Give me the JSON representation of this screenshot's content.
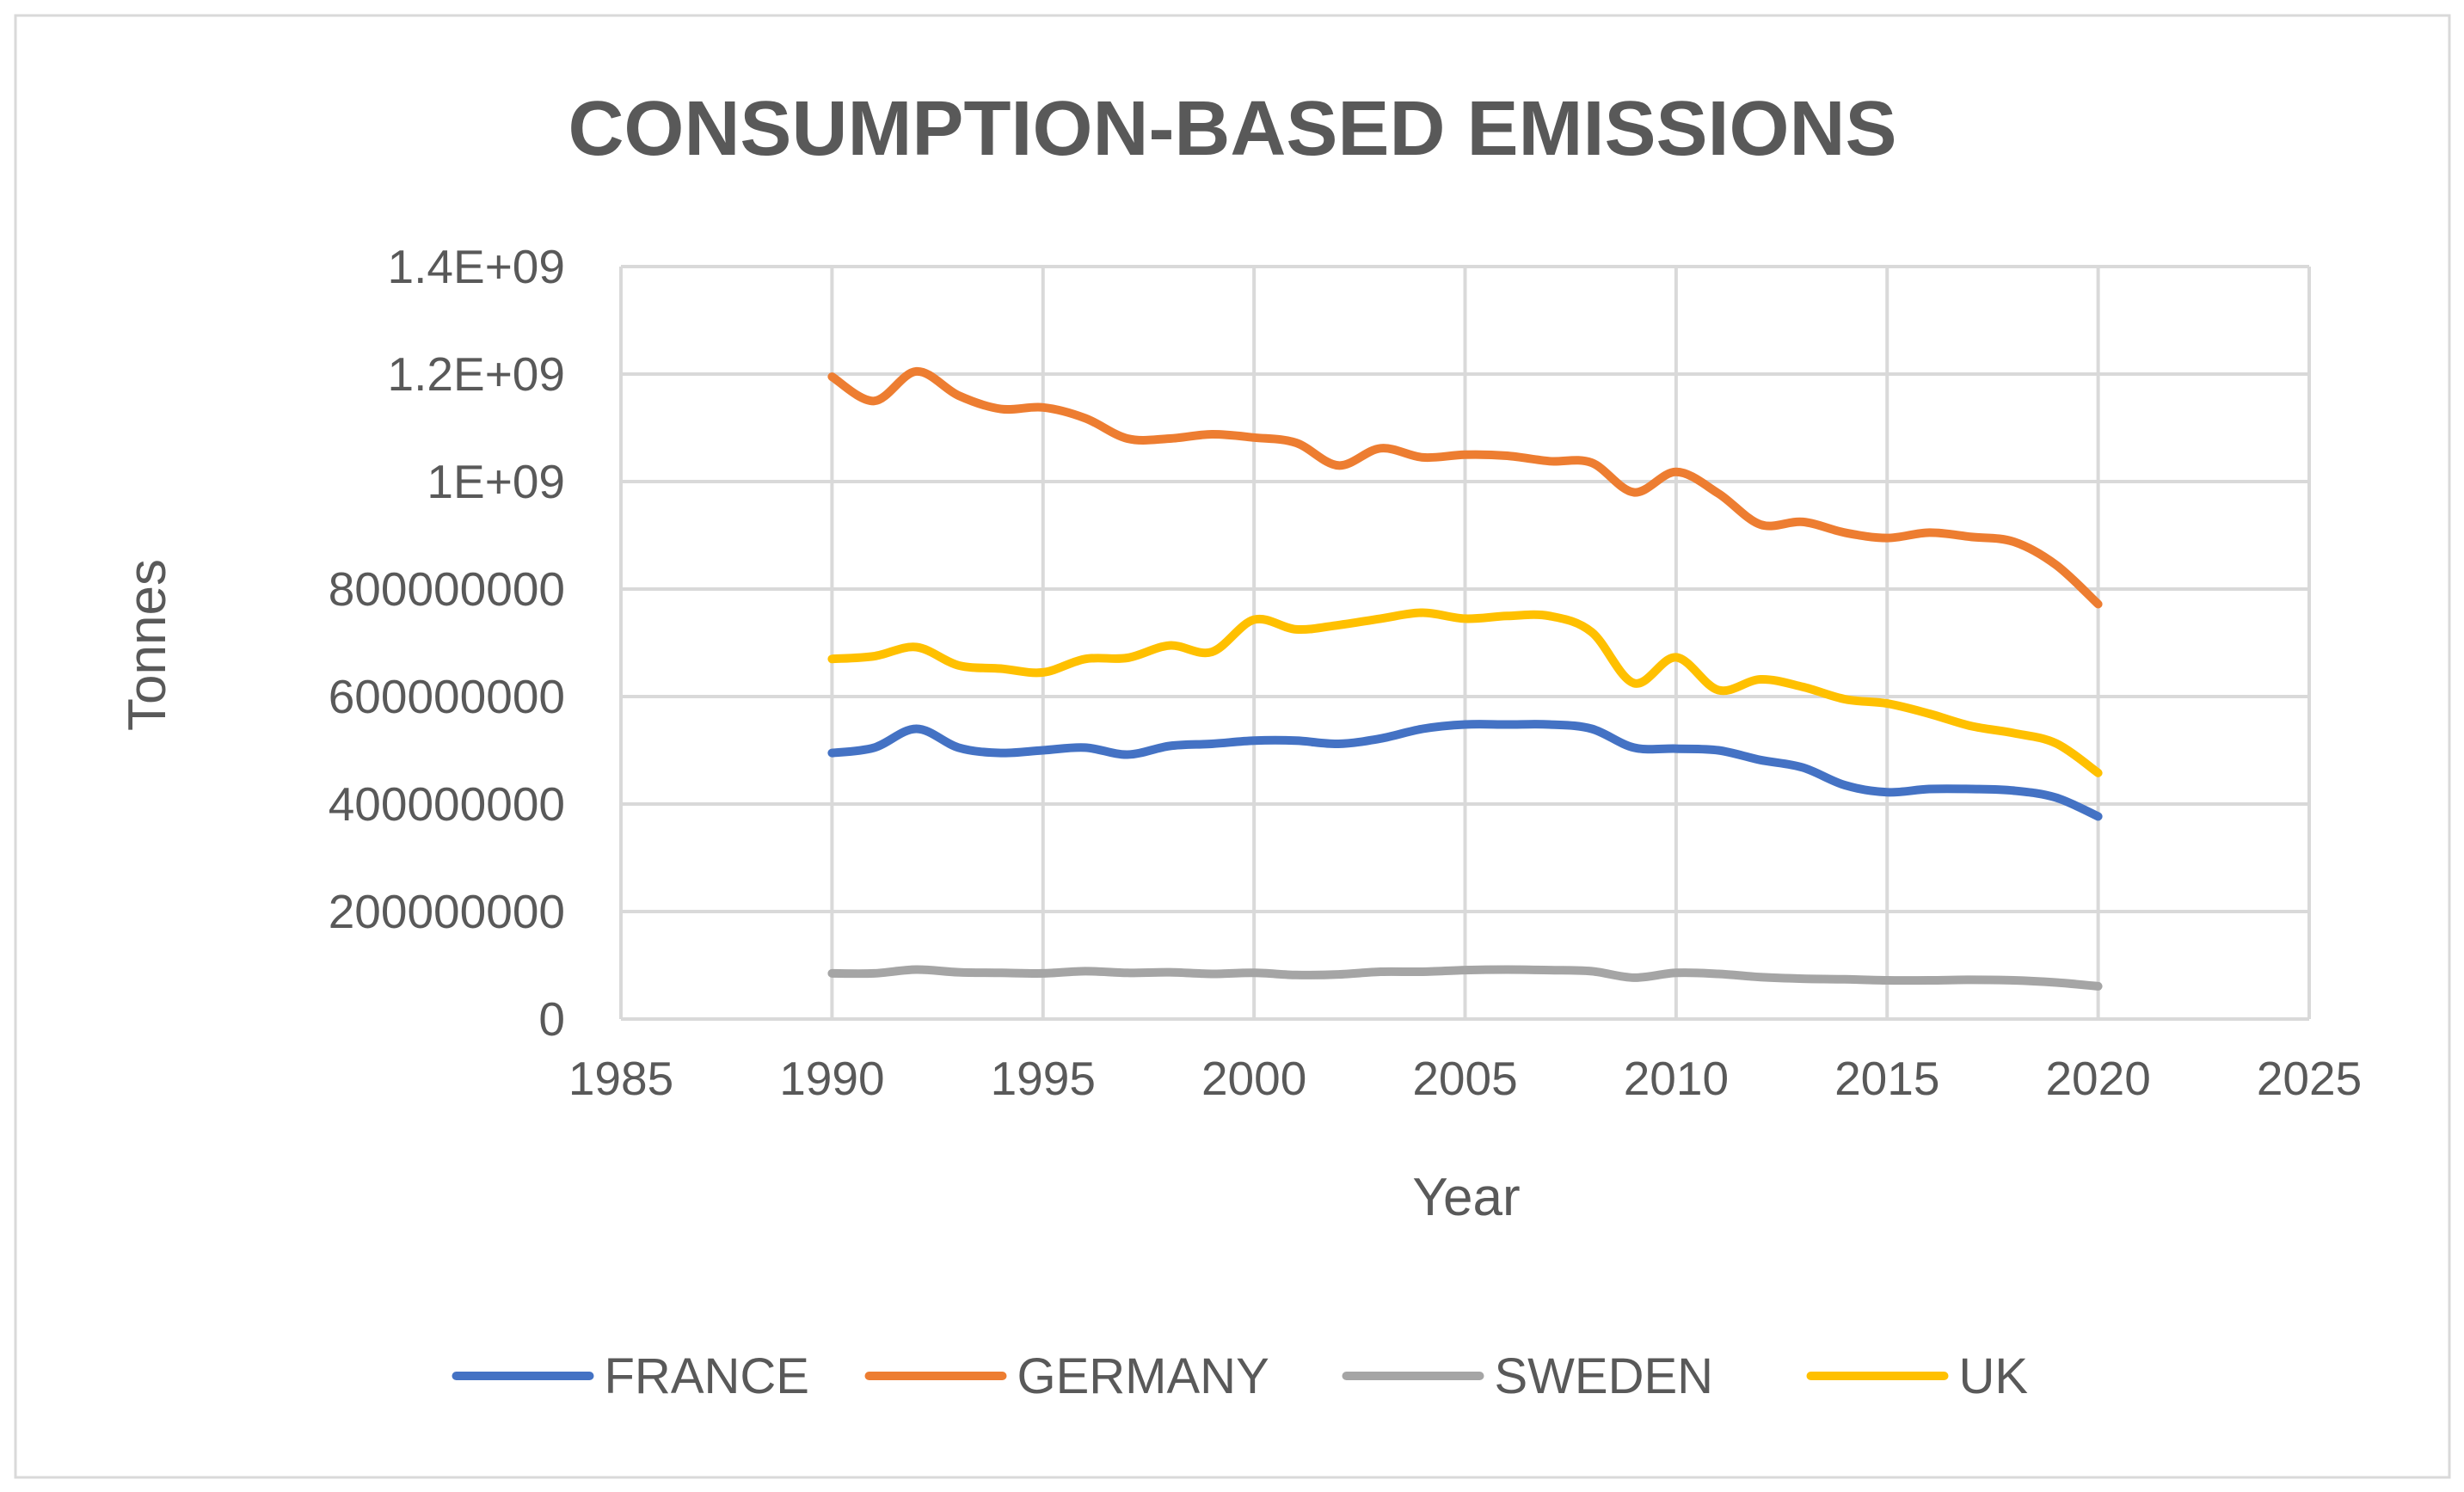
{
  "chart_data": {
    "type": "line",
    "title": "CONSUMPTION-BASED EMISSIONS",
    "xlabel": "Year",
    "ylabel": "Tonnes",
    "xlim": [
      1985,
      2025
    ],
    "ylim": [
      0,
      1400000000
    ],
    "x_ticks": [
      1985,
      1990,
      1995,
      2000,
      2005,
      2010,
      2015,
      2020,
      2025
    ],
    "x_tick_labels": [
      "1985",
      "1990",
      "1995",
      "2000",
      "2005",
      "2010",
      "2015",
      "2020",
      "2025"
    ],
    "y_ticks": [
      0,
      200000000,
      400000000,
      600000000,
      800000000,
      1000000000,
      1200000000,
      1400000000
    ],
    "y_tick_labels": [
      "0",
      "200000000",
      "400000000",
      "600000000",
      "800000000",
      "1E+09",
      "1.2E+09",
      "1.4E+09"
    ],
    "grid": true,
    "legend_position": "bottom",
    "x": [
      1990,
      1991,
      1992,
      1993,
      1994,
      1995,
      1996,
      1997,
      1998,
      1999,
      2000,
      2001,
      2002,
      2003,
      2004,
      2005,
      2006,
      2007,
      2008,
      2009,
      2010,
      2011,
      2012,
      2013,
      2014,
      2015,
      2016,
      2017,
      2018,
      2019,
      2020
    ],
    "series": [
      {
        "name": "FRANCE",
        "color": "#4472C4",
        "values": [
          495000000,
          505000000,
          540000000,
          505000000,
          495000000,
          500000000,
          505000000,
          492000000,
          508000000,
          512000000,
          518000000,
          518000000,
          512000000,
          522000000,
          540000000,
          548000000,
          548000000,
          548000000,
          540000000,
          505000000,
          503000000,
          500000000,
          482000000,
          468000000,
          435000000,
          422000000,
          428000000,
          428000000,
          425000000,
          412000000,
          377000000
        ]
      },
      {
        "name": "GERMANY",
        "color": "#ED7D31",
        "values": [
          1195000000,
          1150000000,
          1205000000,
          1160000000,
          1135000000,
          1138000000,
          1118000000,
          1080000000,
          1080000000,
          1088000000,
          1082000000,
          1072000000,
          1030000000,
          1062000000,
          1045000000,
          1050000000,
          1048000000,
          1038000000,
          1035000000,
          980000000,
          1018000000,
          978000000,
          920000000,
          925000000,
          905000000,
          895000000,
          905000000,
          897000000,
          888000000,
          845000000,
          772000000
        ]
      },
      {
        "name": "SWEDEN",
        "color": "#A5A5A5",
        "values": [
          85000000,
          85000000,
          92000000,
          87000000,
          86000000,
          85000000,
          89000000,
          86000000,
          87000000,
          84000000,
          86000000,
          82000000,
          83000000,
          88000000,
          88000000,
          91000000,
          92000000,
          91000000,
          89000000,
          77000000,
          86000000,
          84000000,
          78000000,
          75000000,
          74000000,
          72000000,
          72000000,
          73000000,
          72000000,
          68000000,
          61000000
        ]
      },
      {
        "name": "UK",
        "color": "#FFC000",
        "values": [
          670000000,
          675000000,
          692000000,
          658000000,
          652000000,
          645000000,
          670000000,
          672000000,
          695000000,
          683000000,
          743000000,
          725000000,
          733000000,
          745000000,
          756000000,
          745000000,
          750000000,
          750000000,
          720000000,
          625000000,
          673000000,
          612000000,
          632000000,
          618000000,
          595000000,
          587000000,
          568000000,
          545000000,
          532000000,
          513000000,
          458000000
        ]
      }
    ]
  }
}
